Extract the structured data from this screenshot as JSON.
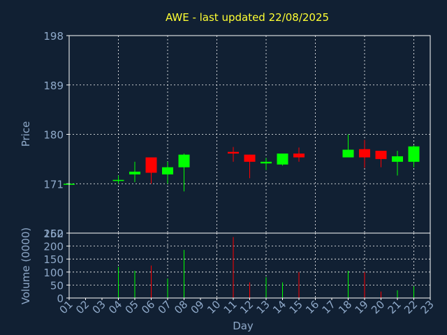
{
  "colors": {
    "background": "#112033",
    "title": "#ffff33",
    "axis_text": "#8fa9c9",
    "grid": "#ffffff",
    "frame": "#ffffff",
    "up": "#00ff00",
    "down": "#ff0000"
  },
  "chart_data": [
    {
      "type": "candlestick",
      "title": "AWE - last updated 22/08/2025",
      "ylabel": "Price",
      "ylim": [
        162,
        198
      ],
      "yticks": [
        "198",
        "189",
        "180",
        "171",
        "162"
      ],
      "xlim": [
        1,
        23
      ],
      "grid": true,
      "candles": [
        {
          "day": 1,
          "open": 171.0,
          "high": 171.0,
          "low": 171.0,
          "close": 171.0
        },
        {
          "day": 4,
          "open": 171.5,
          "high": 172.5,
          "low": 171.0,
          "close": 171.7
        },
        {
          "day": 5,
          "open": 172.7,
          "high": 175.0,
          "low": 171.3,
          "close": 173.2
        },
        {
          "day": 6,
          "open": 175.8,
          "high": 175.8,
          "low": 171.0,
          "close": 173.0
        },
        {
          "day": 7,
          "open": 172.7,
          "high": 175.0,
          "low": 171.0,
          "close": 174.0
        },
        {
          "day": 8,
          "open": 174.0,
          "high": 176.5,
          "low": 169.6,
          "close": 176.3
        },
        {
          "day": 11,
          "open": 176.8,
          "high": 177.7,
          "low": 175.0,
          "close": 176.5
        },
        {
          "day": 12,
          "open": 176.3,
          "high": 176.3,
          "low": 172.0,
          "close": 175.0
        },
        {
          "day": 13,
          "open": 174.7,
          "high": 175.7,
          "low": 173.5,
          "close": 175.0
        },
        {
          "day": 14,
          "open": 174.5,
          "high": 176.5,
          "low": 174.3,
          "close": 176.5
        },
        {
          "day": 15,
          "open": 176.5,
          "high": 177.6,
          "low": 175.0,
          "close": 175.8
        },
        {
          "day": 18,
          "open": 175.8,
          "high": 180.0,
          "low": 175.8,
          "close": 177.2
        },
        {
          "day": 19,
          "open": 177.3,
          "high": 179.0,
          "low": 173.9,
          "close": 175.8
        },
        {
          "day": 20,
          "open": 177.0,
          "high": 177.0,
          "low": 174.0,
          "close": 175.5
        },
        {
          "day": 21,
          "open": 175.0,
          "high": 177.0,
          "low": 172.5,
          "close": 176.0
        },
        {
          "day": 22,
          "open": 175.0,
          "high": 178.0,
          "low": 174.0,
          "close": 177.8
        }
      ]
    },
    {
      "type": "bar",
      "ylabel": "Volume (0000)",
      "xlabel": "Day",
      "ylim": [
        0,
        250
      ],
      "yticks": [
        "250",
        "200",
        "150",
        "100",
        "50",
        "0"
      ],
      "xlim": [
        1,
        23
      ],
      "x_tick_labels": [
        "01",
        "02",
        "03",
        "04",
        "05",
        "06",
        "07",
        "08",
        "09",
        "10",
        "11",
        "12",
        "13",
        "14",
        "15",
        "16",
        "17",
        "18",
        "19",
        "20",
        "21",
        "22",
        "23"
      ],
      "grid": true,
      "bars": [
        {
          "day": 4,
          "value": 120,
          "direction": "up"
        },
        {
          "day": 5,
          "value": 105,
          "direction": "up"
        },
        {
          "day": 6,
          "value": 125,
          "direction": "down"
        },
        {
          "day": 7,
          "value": 75,
          "direction": "up"
        },
        {
          "day": 8,
          "value": 185,
          "direction": "up"
        },
        {
          "day": 11,
          "value": 235,
          "direction": "down"
        },
        {
          "day": 12,
          "value": 60,
          "direction": "down"
        },
        {
          "day": 13,
          "value": 80,
          "direction": "up"
        },
        {
          "day": 14,
          "value": 60,
          "direction": "up"
        },
        {
          "day": 15,
          "value": 100,
          "direction": "down"
        },
        {
          "day": 18,
          "value": 105,
          "direction": "up"
        },
        {
          "day": 19,
          "value": 100,
          "direction": "down"
        },
        {
          "day": 20,
          "value": 25,
          "direction": "down"
        },
        {
          "day": 21,
          "value": 30,
          "direction": "up"
        },
        {
          "day": 22,
          "value": 45,
          "direction": "up"
        }
      ]
    }
  ]
}
